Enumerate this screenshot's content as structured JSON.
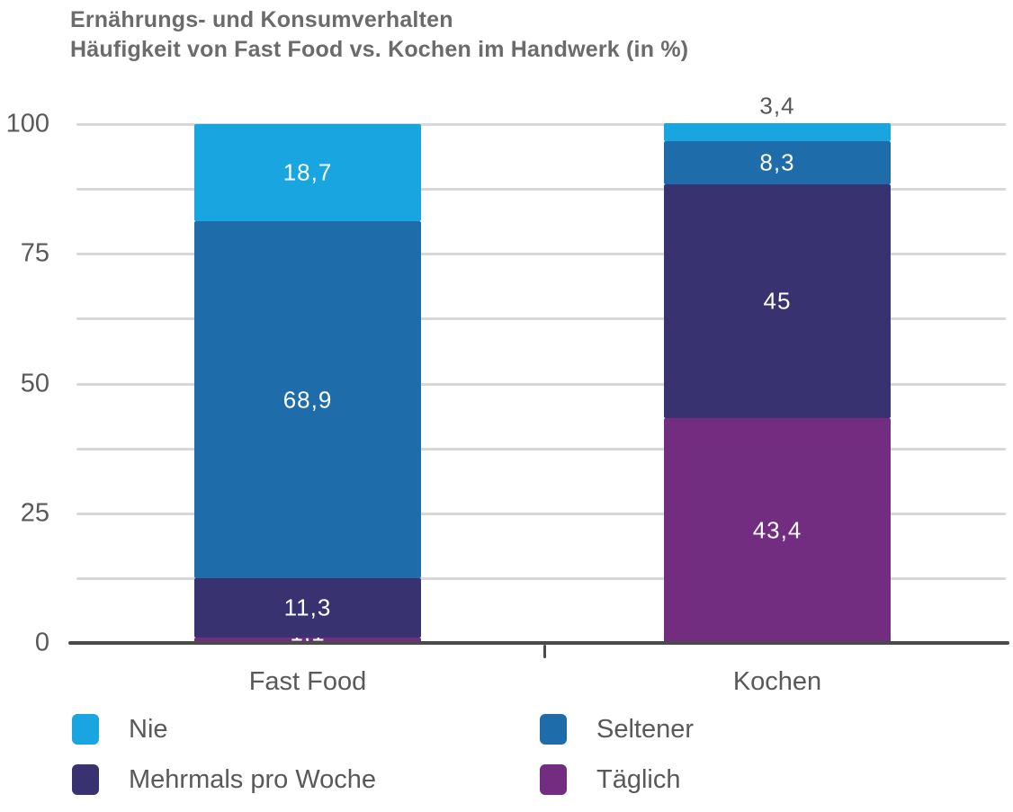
{
  "title": {
    "line1": "Ernährungs- und Konsumverhalten",
    "line2": "Häufigkeit von Fast Food vs. Kochen im Handwerk (in %)"
  },
  "chart_data": {
    "type": "bar",
    "stacked": true,
    "orientation": "vertical",
    "title": "Ernährungs- und Konsumverhalten — Häufigkeit von Fast Food vs. Kochen im Handwerk (in %)",
    "categories": [
      "Fast Food",
      "Kochen"
    ],
    "series": [
      {
        "name": "Nie",
        "color": "#18a5e0",
        "values": [
          18.7,
          3.4
        ],
        "value_labels": [
          "18,7",
          "3,4"
        ]
      },
      {
        "name": "Seltener",
        "color": "#1f6cab",
        "values": [
          68.9,
          8.3
        ],
        "value_labels": [
          "68,9",
          "8,3"
        ]
      },
      {
        "name": "Mehrmals pro Woche",
        "color": "#393270",
        "values": [
          11.3,
          45
        ],
        "value_labels": [
          "11,3",
          "45"
        ]
      },
      {
        "name": "Täglich",
        "color": "#722c80",
        "values": [
          1.1,
          43.4
        ],
        "value_labels": [
          "1,1",
          "43,4"
        ]
      }
    ],
    "stack_order_top_to_bottom": [
      "Nie",
      "Seltener",
      "Mehrmals pro Woche",
      "Täglich"
    ],
    "ylim": [
      0,
      100
    ],
    "yticks": [
      0,
      25,
      50,
      75,
      100
    ],
    "ytick_labels": [
      "0",
      "25",
      "50",
      "75",
      "100"
    ],
    "gridline_interval": 12.5,
    "grid": true,
    "legend_position": "bottom",
    "decimal_separator": ","
  },
  "colors": {
    "title_text": "#6b6b6b",
    "axis_text": "#595959",
    "gridline": "#d8d8d8",
    "axis_line": "#4a4a4a",
    "value_label_inside": "#ffffff",
    "value_label_outside": "#565656",
    "background": "#ffffff"
  }
}
